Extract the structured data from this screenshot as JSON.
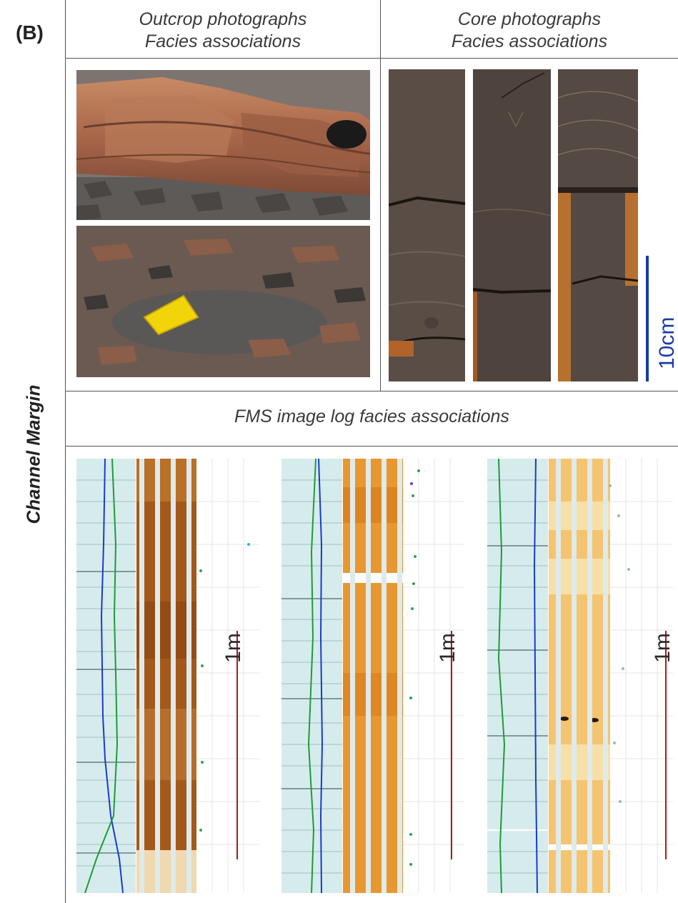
{
  "panel_label": "(B)",
  "row_label": "Channel Margin",
  "headers": {
    "outcrop_line1": "Outcrop photographs",
    "outcrop_line2": "Facies associations",
    "core_line1": "Core photographs",
    "core_line2": "Facies associations",
    "fms": "FMS image log facies associations"
  },
  "scales": {
    "core": "10cm",
    "fms": "1m"
  },
  "colors": {
    "border": "#555555",
    "core_scale": "#1a3aa8",
    "fms_scale": "#b01818",
    "gr_curve": "#1f9a3a",
    "res_curve": "#1a3ad0",
    "track_bg": "#d6ecec"
  }
}
